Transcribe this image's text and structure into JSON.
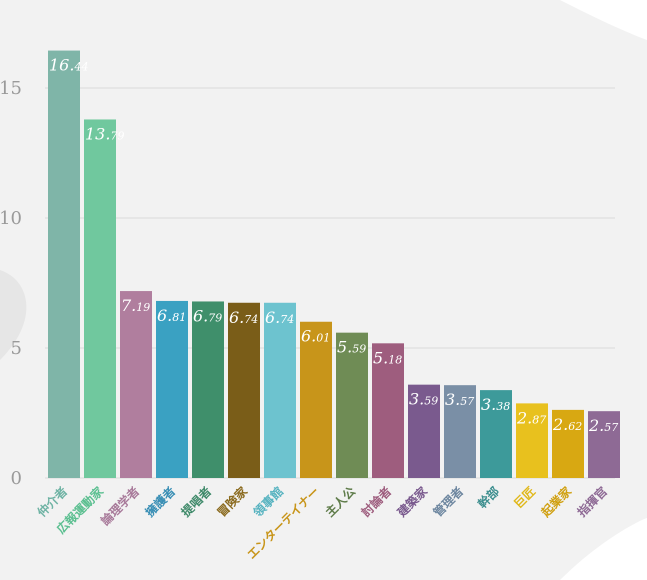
{
  "chart_data": {
    "type": "bar",
    "categories": [
      "仲介者",
      "広報運動家",
      "論理学者",
      "擁護者",
      "提唱者",
      "冒険家",
      "領事館",
      "エンターテイナー",
      "主人公",
      "討論者",
      "建築家",
      "管理者",
      "幹部",
      "巨匠",
      "起業家",
      "指揮官"
    ],
    "values": [
      16.44,
      13.79,
      7.19,
      6.81,
      6.79,
      6.74,
      6.74,
      6.01,
      5.59,
      5.18,
      3.59,
      3.57,
      3.38,
      2.87,
      2.62,
      2.57
    ],
    "value_labels": [
      {
        "int": "16.",
        "dec": "44"
      },
      {
        "int": "13.",
        "dec": "79"
      },
      {
        "int": "7.",
        "dec": "19"
      },
      {
        "int": "6.",
        "dec": "81"
      },
      {
        "int": "6.",
        "dec": "79"
      },
      {
        "int": "6.",
        "dec": "74"
      },
      {
        "int": "6.",
        "dec": "74"
      },
      {
        "int": "6.",
        "dec": "01"
      },
      {
        "int": "5.",
        "dec": "59"
      },
      {
        "int": "5.",
        "dec": "18"
      },
      {
        "int": "3.",
        "dec": "59"
      },
      {
        "int": "3.",
        "dec": "57"
      },
      {
        "int": "3.",
        "dec": "38"
      },
      {
        "int": "2.",
        "dec": "87"
      },
      {
        "int": "2.",
        "dec": "62"
      },
      {
        "int": "2.",
        "dec": "57"
      }
    ],
    "colors": [
      "#7fb5a8",
      "#70c89e",
      "#b07e9e",
      "#3aa1c2",
      "#3f8f6b",
      "#7a5d18",
      "#6dc3cf",
      "#c8951a",
      "#6f8c55",
      "#9e5d7e",
      "#7a5a8e",
      "#7a8fa6",
      "#3d9a9a",
      "#e8c11e",
      "#d8a812",
      "#8e6a95"
    ],
    "label_colors": [
      "#6fb3a4",
      "#5bbf90",
      "#a87a9a",
      "#3a8fb5",
      "#3f8a6a",
      "#8a6a1e",
      "#57b3c0",
      "#c8951a",
      "#5f7c4a",
      "#9e5d7e",
      "#7a5a8e",
      "#6e87a0",
      "#3d8f8f",
      "#e0b81a",
      "#d0a010",
      "#8e6a95"
    ],
    "y_ticks": [
      0,
      5,
      10,
      15
    ],
    "ylim": [
      0,
      17
    ],
    "grid": true,
    "title": "",
    "xlabel": "",
    "ylabel": ""
  },
  "y_tick_labels": [
    "0",
    "5",
    "10",
    "15"
  ]
}
